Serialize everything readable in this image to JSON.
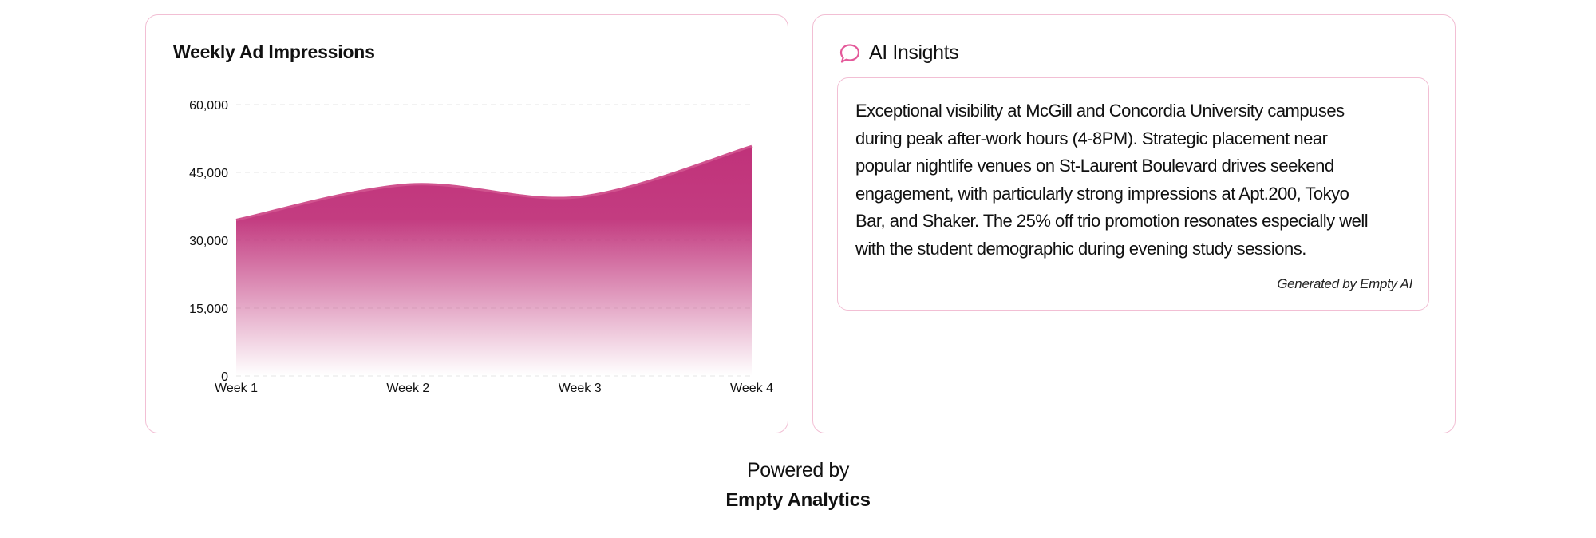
{
  "colors": {
    "card_border": "#f2bfd4",
    "area_fill": "#c0327a",
    "area_line": "#d0528e",
    "grid": "#e6e6e6",
    "icon": "#e4599a"
  },
  "chart_card": {
    "title": "Weekly Ad Impressions"
  },
  "chart_data": {
    "type": "area",
    "title": "Weekly Ad Impressions",
    "categories": [
      "Week 1",
      "Week 2",
      "Week 3",
      "Week 4"
    ],
    "series": [
      {
        "values": [
          34500,
          42300,
          39600,
          50800
        ]
      }
    ],
    "ylim": [
      0,
      60000
    ],
    "yticks": [
      0,
      15000,
      30000,
      45000,
      60000
    ],
    "ytick_labels": [
      "0",
      "15,000",
      "30,000",
      "45,000",
      "60,000"
    ],
    "smooth": true,
    "gradient_fill": true,
    "grid": "horizontal-dashed",
    "legend": "none"
  },
  "insights": {
    "title": "AI Insights",
    "icon": "chat-bubble-icon",
    "text": "Exceptional visibility at McGill and Concordia University campuses during peak after-work hours (4-8PM). Strategic placement near popular nightlife venues on St-Laurent Boulevard drives seekend engagement, with particularly strong impressions at Apt.200, Tokyo Bar, and Shaker. The 25% off trio promotion resonates especially well with the student demographic during evening study sessions.",
    "generated_by": "Generated by Empty AI"
  },
  "footer": {
    "powered_by": "Powered by",
    "brand": "Empty Analytics"
  }
}
